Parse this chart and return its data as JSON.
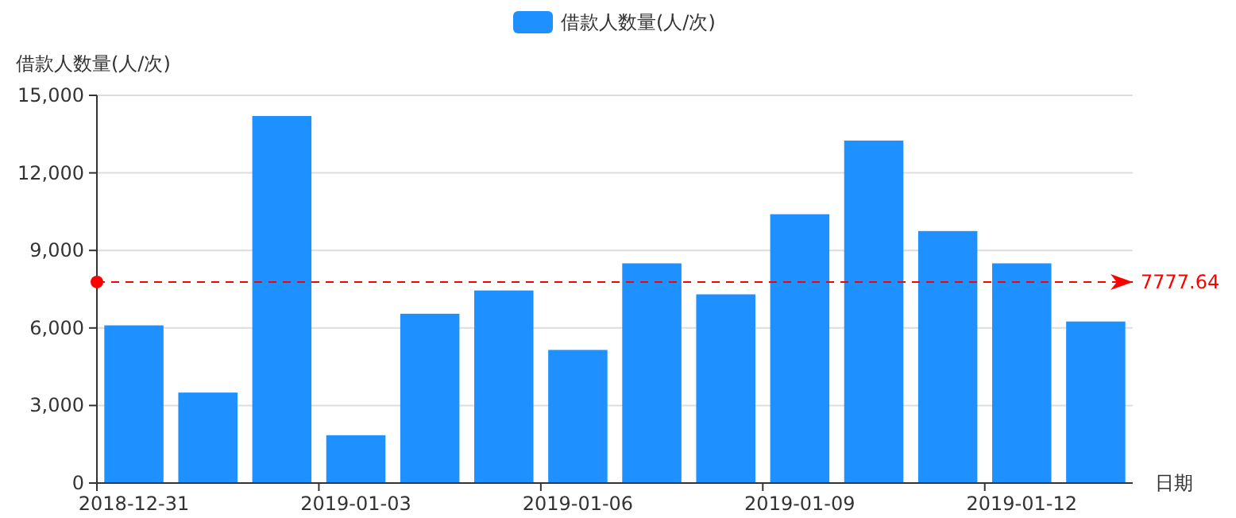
{
  "chart_data": {
    "type": "bar",
    "ylabel": "借款人数量(人/次)",
    "xlabel": "日期",
    "categories": [
      "2018-12-31",
      null,
      null,
      "2019-01-03",
      null,
      null,
      "2019-01-06",
      null,
      null,
      "2019-01-09",
      null,
      null,
      "2019-01-12",
      null
    ],
    "series": [
      {
        "name": "借款人数量(人/次)",
        "color": "#1e90ff",
        "values": [
          6100,
          3500,
          14200,
          1850,
          6550,
          7450,
          5150,
          8500,
          7300,
          10400,
          13250,
          9750,
          8500,
          6250
        ]
      }
    ],
    "ylim": [
      0,
      15000
    ],
    "yticks": [
      {
        "value": 0,
        "label": "0"
      },
      {
        "value": 3000,
        "label": "3,000"
      },
      {
        "value": 6000,
        "label": "6,000"
      },
      {
        "value": 9000,
        "label": "9,000"
      },
      {
        "value": 12000,
        "label": "12,000"
      },
      {
        "value": 15000,
        "label": "15,000"
      }
    ],
    "grid": "y",
    "legend": "top",
    "ref_lines": [
      {
        "axis": "y",
        "value": 7777.64,
        "label": "7777.64",
        "color": "#ff0000",
        "line_style": "dashed"
      }
    ]
  }
}
